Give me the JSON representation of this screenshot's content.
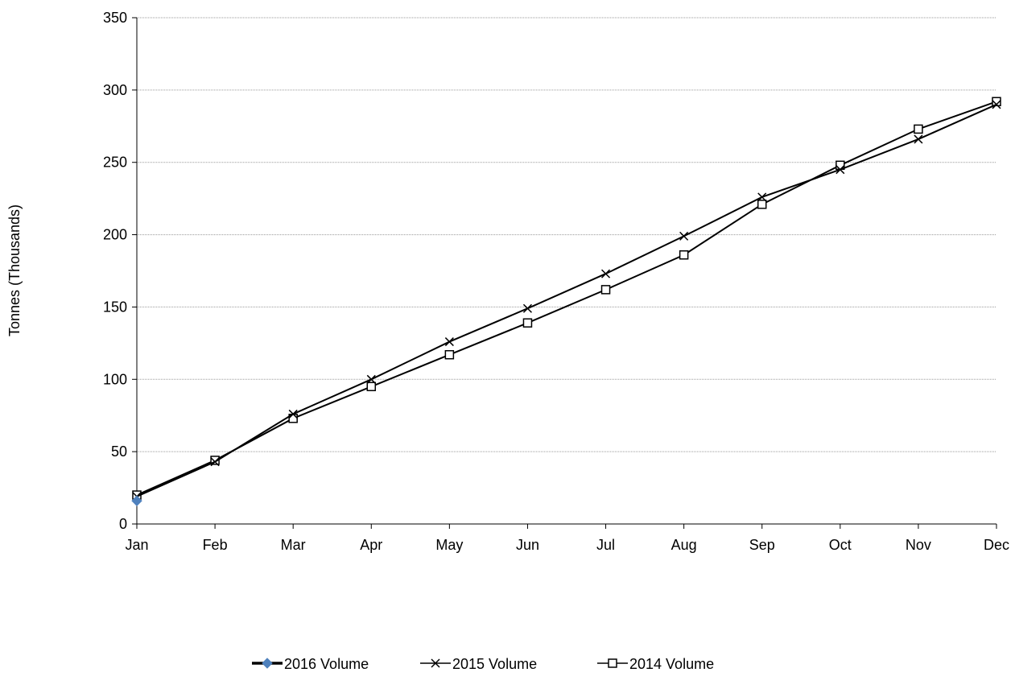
{
  "chart_data": {
    "type": "line",
    "title": "",
    "xlabel": "",
    "ylabel": "Tonnes (Thousands)",
    "categories": [
      "Jan",
      "Feb",
      "Mar",
      "Apr",
      "May",
      "Jun",
      "Jul",
      "Aug",
      "Sep",
      "Oct",
      "Nov",
      "Dec"
    ],
    "ylim": [
      0,
      350
    ],
    "yticks": [
      0,
      50,
      100,
      150,
      200,
      250,
      300,
      350
    ],
    "grid": "horizontal",
    "legend_position": "bottom",
    "series": [
      {
        "name": "2016 Volume",
        "marker": "diamond",
        "color": "#000000",
        "marker_color": "#4f81bd",
        "values": [
          16,
          null,
          null,
          null,
          null,
          null,
          null,
          null,
          null,
          null,
          null,
          null
        ]
      },
      {
        "name": "2015 Volume",
        "marker": "x",
        "color": "#000000",
        "values": [
          19,
          43,
          76,
          100,
          126,
          149,
          173,
          199,
          226,
          245,
          266,
          290
        ]
      },
      {
        "name": "2014 Volume",
        "marker": "square",
        "color": "#000000",
        "values": [
          20,
          44,
          73,
          95,
          117,
          139,
          162,
          186,
          221,
          248,
          273,
          292
        ]
      }
    ]
  }
}
